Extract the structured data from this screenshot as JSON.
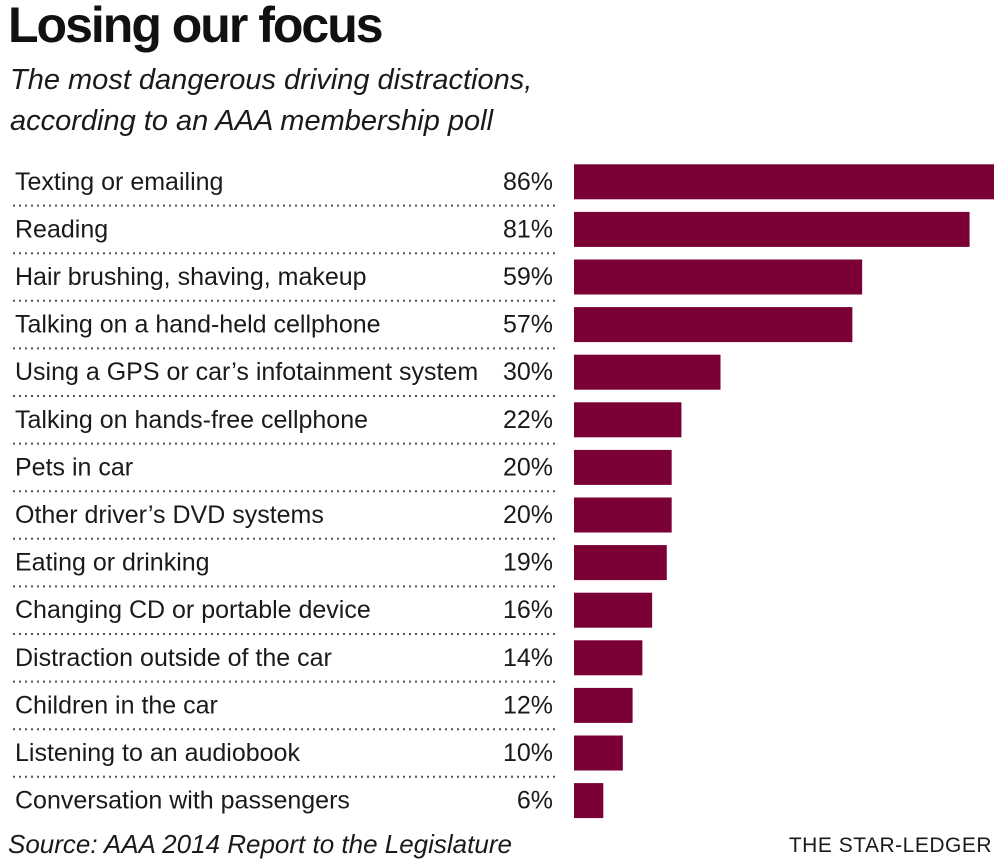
{
  "chart_data": {
    "type": "bar",
    "orientation": "horizontal",
    "title": "Losing our focus",
    "subtitle_lines": [
      "The most dangerous driving distractions,",
      "according to an AAA membership poll"
    ],
    "categories": [
      "Texting or emailing",
      "Reading",
      "Hair brushing, shaving, makeup",
      "Talking on a hand-held cellphone",
      "Using a GPS or car’s infotainment system",
      "Talking on hands-free cellphone",
      "Pets in car",
      "Other driver’s DVD systems",
      "Eating or drinking",
      "Changing CD or portable device",
      "Distraction outside of the car",
      "Children in the car",
      "Listening to an audiobook",
      "Conversation with passengers"
    ],
    "values": [
      86,
      81,
      59,
      57,
      30,
      22,
      20,
      20,
      19,
      16,
      14,
      12,
      10,
      6
    ],
    "value_labels": [
      "86%",
      "81%",
      "59%",
      "57%",
      "30%",
      "22%",
      "20%",
      "20%",
      "19%",
      "16%",
      "14%",
      "12%",
      "10%",
      "6%"
    ],
    "bar_color": "#7a0036",
    "grid": false,
    "source": "Source: AAA 2014 Report to the Legislature",
    "credit": "THE STAR-LEDGER"
  }
}
